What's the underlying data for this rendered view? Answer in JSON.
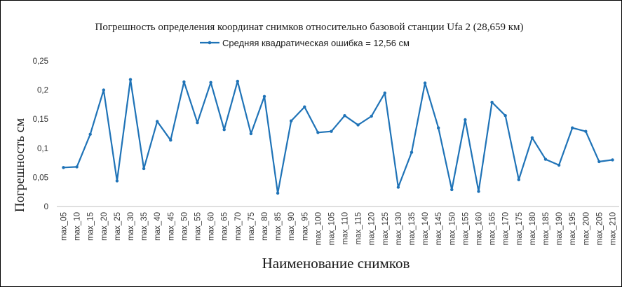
{
  "chart_data": {
    "type": "line",
    "title": "Погрешность определения координат снимков относительно базовой станции Ufa 2 (28,659 км)",
    "xlabel": "Наименование снимков",
    "ylabel": "Погрешность  см",
    "ylim": [
      0,
      0.25
    ],
    "yticks": [
      "0",
      "0,05",
      "0,1",
      "0,15",
      "0,2",
      "0,25"
    ],
    "yticks_values": [
      0,
      0.05,
      0.1,
      0.15,
      0.2,
      0.25
    ],
    "grid": false,
    "legend_position": "top",
    "categories": [
      "max_05",
      "max_10",
      "max_15",
      "max_20",
      "max_25",
      "max_30",
      "max_35",
      "max_40",
      "max_45",
      "max_50",
      "max_55",
      "max_60",
      "max_65",
      "max_70",
      "max_75",
      "max_80",
      "max_85",
      "max_90",
      "max_95",
      "max_100",
      "max_105",
      "max_110",
      "max_115",
      "max_120",
      "max_125",
      "max_130",
      "max_135",
      "max_140",
      "max_145",
      "max_150",
      "max_155",
      "max_160",
      "max_165",
      "max_170",
      "max_175",
      "max_180",
      "max_185",
      "max_190",
      "max_195",
      "max_200",
      "max_205",
      "max_210"
    ],
    "series": [
      {
        "name": "Средняя квадратическая ошибка = 12,56 см",
        "color": "#1f73b7",
        "values": [
          0.067,
          0.068,
          0.124,
          0.2,
          0.044,
          0.218,
          0.065,
          0.146,
          0.114,
          0.214,
          0.144,
          0.213,
          0.132,
          0.215,
          0.125,
          0.189,
          0.023,
          0.147,
          0.171,
          0.127,
          0.129,
          0.156,
          0.14,
          0.155,
          0.195,
          0.033,
          0.093,
          0.212,
          0.135,
          0.029,
          0.149,
          0.026,
          0.179,
          0.156,
          0.046,
          0.118,
          0.081,
          0.071,
          0.135,
          0.129,
          0.077,
          0.08
        ]
      }
    ]
  }
}
